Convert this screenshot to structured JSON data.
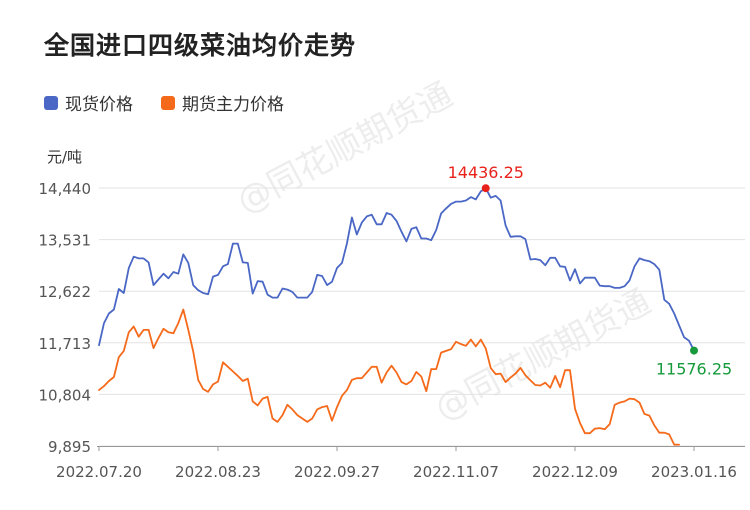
{
  "title": "全国进口四级菜油均价走势",
  "chart_data": {
    "type": "line",
    "ylabel": "元/吨",
    "y_ticks": [
      "14,440",
      "13,531",
      "12,622",
      "11,713",
      "10,804",
      "9,895"
    ],
    "y_tick_values": [
      14440,
      13531,
      12622,
      11713,
      10804,
      9895
    ],
    "ylim": [
      9895,
      14440
    ],
    "x_tick_labels": [
      "2022.07.20",
      "2022.08.23",
      "2022.09.27",
      "2022.11.07",
      "2022.12.09",
      "2023.01.16"
    ],
    "x_tick_index": [
      0,
      24,
      48,
      72,
      96,
      120
    ],
    "legend_position": "top-left",
    "grid": "horizontal",
    "series": [
      {
        "name": "现货价格",
        "color": "#4a67c5",
        "values": [
          11670,
          12060,
          12230,
          12300,
          12660,
          12590,
          13030,
          13230,
          13200,
          13200,
          13130,
          12730,
          12830,
          12930,
          12850,
          12960,
          12930,
          13270,
          13120,
          12730,
          12640,
          12590,
          12570,
          12880,
          12910,
          13060,
          13100,
          13460,
          13460,
          13130,
          13120,
          12580,
          12800,
          12790,
          12560,
          12510,
          12510,
          12670,
          12650,
          12610,
          12510,
          12510,
          12510,
          12610,
          12910,
          12890,
          12730,
          12790,
          13030,
          13120,
          13460,
          13920,
          13620,
          13830,
          13940,
          13970,
          13800,
          13800,
          14000,
          13970,
          13860,
          13670,
          13500,
          13720,
          13750,
          13550,
          13550,
          13520,
          13700,
          13990,
          14080,
          14160,
          14200,
          14200,
          14220,
          14280,
          14240,
          14380,
          14436,
          14270,
          14300,
          14220,
          13780,
          13580,
          13590,
          13590,
          13540,
          13180,
          13190,
          13170,
          13080,
          13210,
          13210,
          13060,
          13050,
          12810,
          13010,
          12760,
          12860,
          12860,
          12860,
          12720,
          12710,
          12710,
          12680,
          12680,
          12710,
          12810,
          13060,
          13200,
          13170,
          13150,
          13100,
          13000,
          12470,
          12400,
          12230,
          12020,
          11810,
          11750,
          11576.25
        ]
      },
      {
        "name": "期货主力价格",
        "color": "#f56a1a",
        "values": [
          10880,
          10950,
          11040,
          11110,
          11460,
          11570,
          11900,
          12000,
          11820,
          11940,
          11940,
          11620,
          11800,
          11960,
          11900,
          11880,
          12060,
          12300,
          11940,
          11560,
          11060,
          10900,
          10850,
          10980,
          11030,
          11370,
          11290,
          11210,
          11130,
          11040,
          11080,
          10680,
          10610,
          10730,
          10760,
          10380,
          10320,
          10440,
          10620,
          10540,
          10440,
          10380,
          10320,
          10380,
          10540,
          10580,
          10600,
          10340,
          10580,
          10780,
          10880,
          11060,
          11090,
          11090,
          11190,
          11290,
          11290,
          11010,
          11190,
          11310,
          11190,
          11020,
          10980,
          11040,
          11200,
          11120,
          10860,
          11250,
          11250,
          11540,
          11570,
          11600,
          11730,
          11690,
          11660,
          11770,
          11650,
          11770,
          11610,
          11270,
          11160,
          11170,
          11020,
          11100,
          11170,
          11270,
          11140,
          11050,
          10970,
          10960,
          11010,
          10920,
          11130,
          10930,
          11230,
          11230,
          10550,
          10300,
          10120,
          10120,
          10200,
          10210,
          10190,
          10280,
          10620,
          10660,
          10680,
          10730,
          10720,
          10660,
          10460,
          10430,
          10260,
          10130,
          10130,
          10100,
          9920,
          9920
        ]
      }
    ],
    "annotations": [
      {
        "label": "14436.25",
        "series": 0,
        "index": 78,
        "color": "#e8221b"
      },
      {
        "label": "11576.25",
        "series": 0,
        "index": 120,
        "color": "#169a3b"
      }
    ],
    "watermark": "@同花顺期货通"
  }
}
